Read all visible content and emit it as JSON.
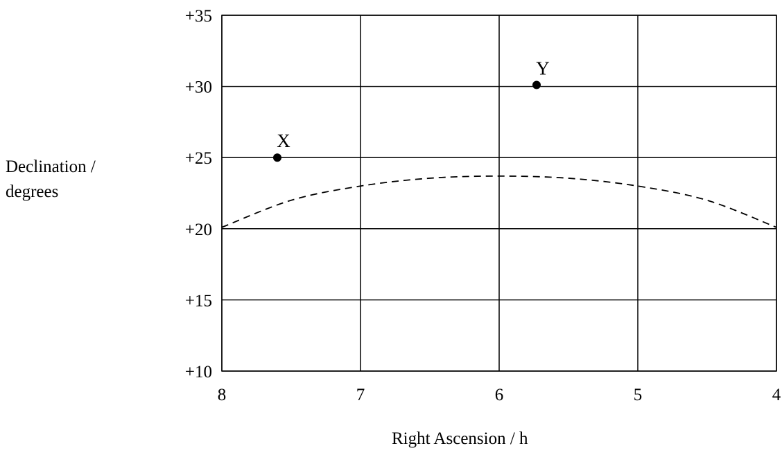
{
  "chart_data": {
    "type": "scatter",
    "title": "",
    "xlabel": "Right Ascension / h",
    "ylabel_lines": [
      "Declination /",
      "degrees"
    ],
    "xlim": [
      8,
      4
    ],
    "ylim": [
      10,
      35
    ],
    "x_reversed": true,
    "x_ticks": [
      8,
      7,
      6,
      5,
      4
    ],
    "x_tick_labels": [
      "8",
      "7",
      "6",
      "5",
      "4"
    ],
    "y_ticks": [
      10,
      15,
      20,
      25,
      30,
      35
    ],
    "y_tick_labels": [
      "+10",
      "+15",
      "+20",
      "+25",
      "+30",
      "+35"
    ],
    "grid": true,
    "points": [
      {
        "label": "X",
        "x": 7.6,
        "y": 25
      },
      {
        "label": "Y",
        "x": 5.73,
        "y": 30.1
      }
    ],
    "dashed_curve": {
      "style": "dashed",
      "x": [
        8,
        7.5,
        7,
        6.5,
        6,
        5.5,
        5,
        4.5,
        4
      ],
      "y": [
        20.1,
        22.0,
        23.0,
        23.55,
        23.7,
        23.55,
        23.0,
        22.0,
        20.1
      ]
    },
    "colors": {
      "line": "#000000",
      "point": "#000000"
    }
  }
}
